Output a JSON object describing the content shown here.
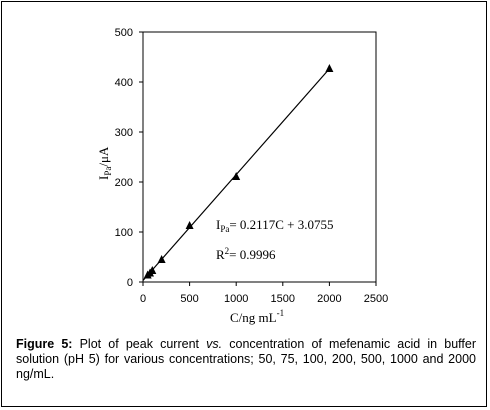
{
  "chart_data": {
    "type": "scatter",
    "xlabel": {
      "main": "C/ng mL",
      "sup": "-1"
    },
    "ylabel": {
      "main": "I",
      "sub": "Pa",
      "rest": "/μA"
    },
    "x_ticks": [
      "0",
      "500",
      "1000",
      "1500",
      "2000",
      "2500"
    ],
    "y_ticks": [
      "0",
      "100",
      "200",
      "300",
      "400",
      "500"
    ],
    "xlim": [
      0,
      2500
    ],
    "ylim": [
      0,
      500
    ],
    "grid": false,
    "marker": "triangle",
    "series": [
      {
        "x": [
          50,
          75,
          100,
          200,
          500,
          1000,
          2000
        ],
        "y": [
          14,
          18,
          23,
          45,
          113,
          211,
          427
        ]
      }
    ],
    "trendline": {
      "slope": 0.2117,
      "intercept": 3.0755,
      "x_range": [
        0,
        2000
      ]
    },
    "annotations": {
      "equation": {
        "lhs_main": "I",
        "lhs_sub": "Pa",
        "rhs": "= 0.2117C + 3.0755"
      },
      "r2": {
        "main": "R",
        "sup": "2",
        "rhs": "= 0.9996"
      }
    }
  },
  "caption": {
    "label": "Figure 5:",
    "text_1": " Plot of peak current ",
    "text_italic": "vs.",
    "text_2": " concentration of mefenamic acid in buffer solution (pH 5) for various concentrations; 50, 75, 100, 200, 500, 1000 and 2000 ng/mL."
  },
  "colors": {
    "axis": "#000000",
    "marker": "#000000",
    "line": "#000000",
    "background": "#ffffff"
  }
}
